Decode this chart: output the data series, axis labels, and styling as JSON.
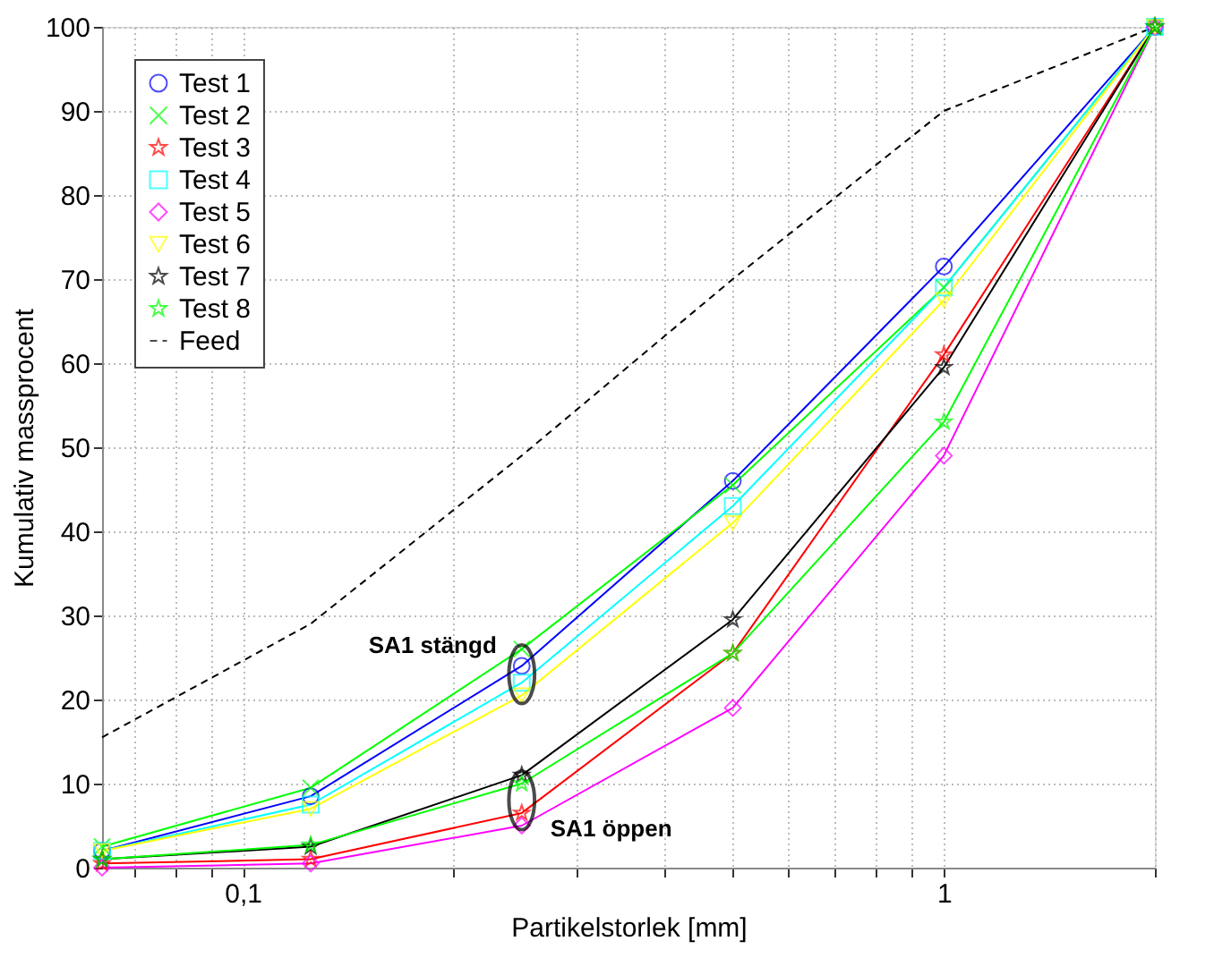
{
  "chart_data": {
    "type": "line",
    "xlabel": "Partikelstorlek [mm]",
    "ylabel": "Kumulativ massprocent",
    "x": [
      0.063,
      0.125,
      0.25,
      0.5,
      1,
      2
    ],
    "log": "x",
    "xlim": [
      0.063,
      2
    ],
    "ylim": [
      0,
      100
    ],
    "xticks": [
      {
        "value": 0.07,
        "label": null
      },
      {
        "value": 0.08,
        "label": null
      },
      {
        "value": 0.09,
        "label": null
      },
      {
        "value": 0.1,
        "label": "0,1"
      },
      {
        "value": 0.2,
        "label": null
      },
      {
        "value": 0.3,
        "label": null
      },
      {
        "value": 0.4,
        "label": null
      },
      {
        "value": 0.5,
        "label": null
      },
      {
        "value": 0.6,
        "label": null
      },
      {
        "value": 0.7,
        "label": null
      },
      {
        "value": 0.8,
        "label": null
      },
      {
        "value": 0.9,
        "label": null
      },
      1,
      {
        "value": 2,
        "label": null
      }
    ],
    "yticks": [
      0,
      10,
      20,
      30,
      40,
      50,
      60,
      70,
      80,
      90,
      100
    ],
    "grid": true,
    "legend": "top left",
    "series": [
      {
        "name": "Test 1",
        "color": "#0000ff",
        "marker": "circle",
        "values": [
          2,
          8.5,
          24,
          46,
          71.5,
          100
        ]
      },
      {
        "name": "Test 2",
        "color": "#00ff00",
        "marker": "cross",
        "values": [
          2.5,
          9.5,
          26,
          45.5,
          69,
          100
        ]
      },
      {
        "name": "Test 3",
        "color": "#ff0000",
        "marker": "star",
        "values": [
          0.5,
          1,
          6.5,
          25.5,
          61,
          100
        ]
      },
      {
        "name": "Test 4",
        "color": "#00ffff",
        "marker": "square",
        "values": [
          2,
          7.5,
          22,
          43,
          69,
          100
        ]
      },
      {
        "name": "Test 5",
        "color": "#ff00ff",
        "marker": "diamond",
        "values": [
          0,
          0.5,
          5,
          19,
          49,
          100
        ]
      },
      {
        "name": "Test 6",
        "color": "#ffff00",
        "marker": "triangle",
        "values": [
          2,
          7,
          20.5,
          41,
          67.5,
          100
        ]
      },
      {
        "name": "Test 7",
        "color": "#000000",
        "marker": "star",
        "values": [
          1,
          2.5,
          11,
          29.5,
          59.5,
          100
        ]
      },
      {
        "name": "Test 8",
        "color": "#00ff00",
        "marker": "star",
        "values": [
          1,
          2.7,
          10,
          25.5,
          53,
          100
        ]
      },
      {
        "name": "Feed",
        "color": "#000000",
        "marker": "none",
        "line_style": "dashed",
        "values": [
          15.5,
          29,
          49,
          70,
          90,
          100
        ]
      }
    ],
    "annotations": [
      {
        "text": "SA1 stängd",
        "x": 0.25,
        "y": 23
      },
      {
        "text": "SA1 öppen",
        "x": 0.25,
        "y": 8
      }
    ]
  }
}
